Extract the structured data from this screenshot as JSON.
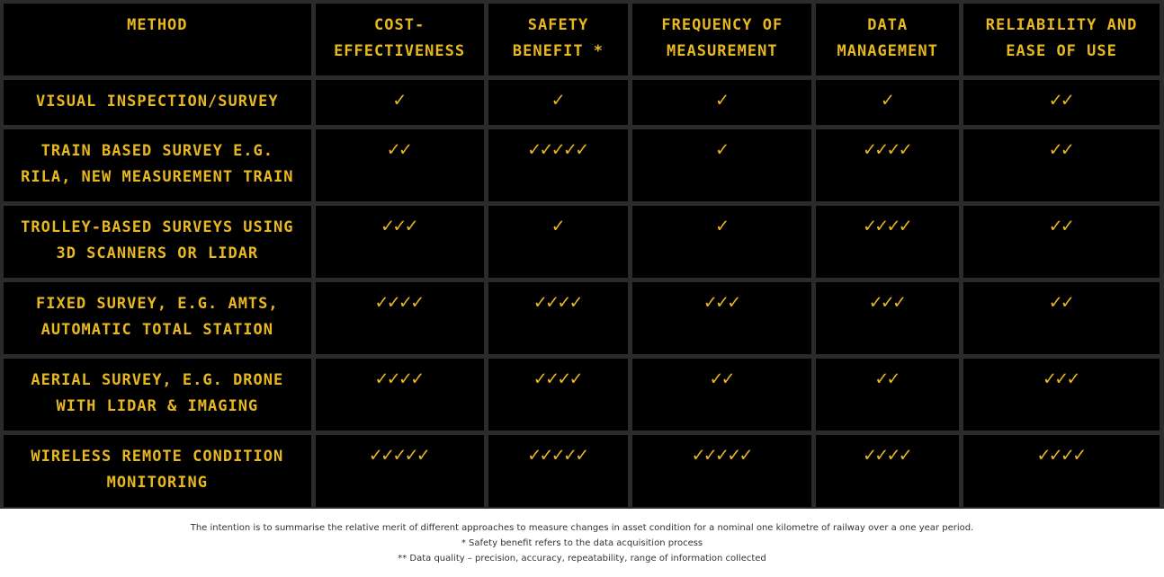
{
  "headers": [
    "Method",
    "Cost-effectiveness",
    "Safety benefit *",
    "Frequency of measurement",
    "Data management",
    "Reliability and ease of use"
  ],
  "rows": [
    {
      "method": "Visual inspection/survey",
      "ratings": [
        "✓",
        "✓",
        "✓",
        "✓",
        "✓✓"
      ]
    },
    {
      "method": "Train based survey e.g. RILA, New Measurement Train",
      "ratings": [
        "✓✓",
        "✓✓✓✓✓",
        "✓",
        "✓✓✓✓",
        "✓✓"
      ]
    },
    {
      "method": "Trolley-based surveys using 3D scanners or LiDAR",
      "ratings": [
        "✓✓✓",
        "✓",
        "✓",
        "✓✓✓✓",
        "✓✓"
      ]
    },
    {
      "method": "Fixed survey, e.g. AMTS, Automatic Total Station",
      "ratings": [
        "✓✓✓✓",
        "✓✓✓✓",
        "✓✓✓",
        "✓✓✓",
        "✓✓"
      ]
    },
    {
      "method": "Aerial survey, e.g. drone with LiDAR & imaging",
      "ratings": [
        "✓✓✓✓",
        "✓✓✓✓",
        "✓✓",
        "✓✓",
        "✓✓✓"
      ]
    },
    {
      "method": "Wireless remote condition monitoring",
      "ratings": [
        "✓✓✓✓✓",
        "✓✓✓✓✓",
        "✓✓✓✓✓",
        "✓✓✓✓",
        "✓✓✓✓"
      ]
    }
  ],
  "footnotes": [
    "The intention is to summarise the relative merit of different approaches to measure changes in asset condition for a nominal one kilometre of railway over a one year period.",
    "* Safety benefit refers to the data acquisition process",
    "** Data quality – precision, accuracy, repeatability, range of information collected"
  ],
  "colors": {
    "background": "#2b2b2b",
    "cell": "#000000",
    "text": "#e8b820",
    "page": "#ffffff"
  }
}
